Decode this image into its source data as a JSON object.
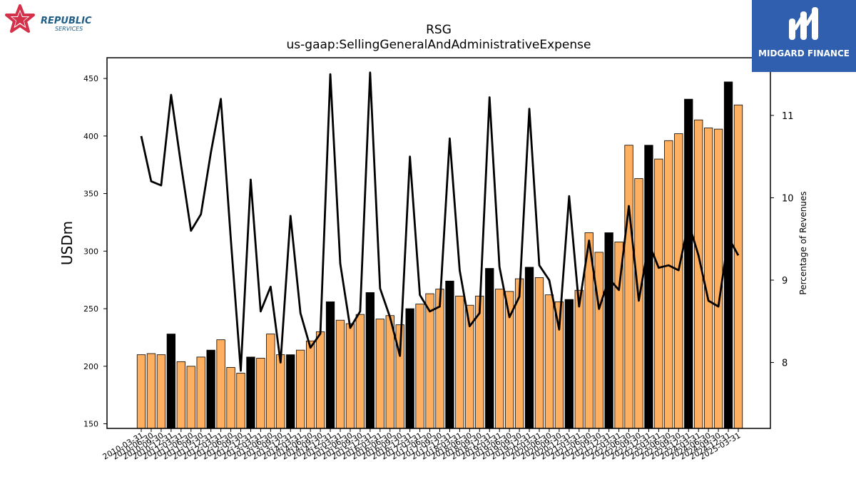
{
  "chart_data": {
    "type": "bar+line",
    "title": "RSG",
    "subtitle": "us-gaap:SellingGeneralAndAdministrativeExpense",
    "ylabel": "USDm",
    "y2label": "Percentage of Revenues",
    "ylim": [
      146,
      468
    ],
    "y2lim": [
      7.2,
      11.7
    ],
    "yticks": [
      150,
      200,
      250,
      300,
      350,
      400,
      450
    ],
    "y2ticks": [
      8,
      9,
      10,
      11
    ],
    "colors": {
      "bar": "#FFAF60",
      "bar_highlight": "#000000",
      "line": "#000000"
    },
    "categories": [
      "2010-03-31",
      "2010-06-30",
      "2010-09-30",
      "2010-12-31",
      "2011-03-31",
      "2011-06-30",
      "2011-09-30",
      "2011-12-31",
      "2012-03-31",
      "2012-06-30",
      "2012-09-30",
      "2012-12-31",
      "2013-03-31",
      "2013-06-30",
      "2013-09-30",
      "2013-12-31",
      "2014-03-31",
      "2014-06-30",
      "2014-09-30",
      "2014-12-31",
      "2015-03-31",
      "2015-06-30",
      "2015-09-30",
      "2015-12-31",
      "2016-03-31",
      "2016-06-30",
      "2016-09-30",
      "2016-12-31",
      "2017-03-31",
      "2017-06-30",
      "2017-09-30",
      "2017-12-31",
      "2018-03-31",
      "2018-06-30",
      "2018-09-30",
      "2018-12-31",
      "2019-03-31",
      "2019-06-30",
      "2019-09-30",
      "2019-12-31",
      "2020-03-31",
      "2020-06-30",
      "2020-09-30",
      "2020-12-31",
      "2021-03-31",
      "2021-06-30",
      "2021-09-30",
      "2021-12-31",
      "2022-03-31",
      "2022-06-30",
      "2022-09-30",
      "2022-12-31",
      "2023-03-31",
      "2023-06-30",
      "2023-09-30",
      "2023-12-31",
      "2024-03-31",
      "2024-06-30",
      "2024-09-30",
      "2024-12-31",
      "2025-03-31"
    ],
    "tick_labels": [
      "2010-03-31",
      "2010-06-30",
      "2010-09-30",
      "2010-12-31",
      "2011-03-31",
      "2011-06-30",
      "2011-09-30",
      "2011-12-31",
      "2012-03-31",
      "2012-06-30",
      "2012-09-30",
      "2012-12-31",
      "2013-03-31",
      "2013-06-30",
      "2013-09-30",
      "2013-12-31",
      "2014-03-31",
      "2014-06-30",
      "2014-09-30",
      "2014-12-31",
      "2015-03-31",
      "2015-06-30",
      "2015-09-30",
      "2015-12-31",
      "2016-03-31",
      "2016-06-30",
      "2016-09-30",
      "2016-12-31",
      "2017-03-31",
      "2017-06-30",
      "2017-09-30",
      "2017-12-31",
      "2018-03-31",
      "2018-06-30",
      "2018-09-30",
      "2018-12-31",
      "2019-03-31",
      "2019-06-30",
      "2019-09-30",
      "2019-12-31",
      "2020-03-31",
      "2020-06-30",
      "2020-09-30",
      "2020-12-31",
      "2021-03-31",
      "2021-06-30",
      "2021-09-30",
      "2021-12-31",
      "2022-03-31",
      "2022-06-30",
      "2022-09-30",
      "2022-12-31",
      "2023-03-31",
      "2023-06-30",
      "2023-09-30",
      "2023-12-31",
      "2024-03-31",
      "2024-06-30",
      "2024-09-30",
      "2024-12-31",
      "2025-03-31"
    ],
    "bar_values": [
      210,
      211,
      210,
      228,
      204,
      200,
      208,
      214,
      223,
      199,
      194,
      208,
      207,
      228,
      210,
      210,
      214,
      222,
      230,
      256,
      240,
      237,
      245,
      264,
      241,
      244,
      236,
      250,
      254,
      263,
      267,
      274,
      261,
      253,
      261,
      285,
      267,
      265,
      276,
      286,
      277,
      262,
      256,
      258,
      266,
      316,
      299,
      316,
      308,
      392,
      363,
      392,
      380,
      396,
      402,
      432,
      414,
      407,
      406,
      447,
      427
    ],
    "highlight_categories": [
      "2010-12-31",
      "2011-12-31",
      "2012-12-31",
      "2013-12-31",
      "2014-12-31",
      "2015-12-31",
      "2016-12-31",
      "2017-12-31",
      "2018-12-31",
      "2019-12-31",
      "2020-12-31",
      "2021-12-31",
      "2022-12-31",
      "2023-12-31",
      "2024-12-31"
    ],
    "pct_values": [
      10.75,
      10.2,
      10.15,
      11.25,
      10.4,
      9.6,
      9.8,
      10.55,
      11.2,
      9.5,
      7.9,
      10.22,
      8.62,
      8.92,
      8.0,
      9.78,
      8.6,
      8.18,
      8.35,
      11.5,
      9.2,
      8.42,
      8.62,
      11.52,
      8.9,
      8.55,
      8.08,
      10.5,
      8.82,
      8.62,
      8.68,
      10.72,
      9.12,
      8.44,
      8.6,
      11.22,
      9.16,
      8.55,
      8.8,
      11.08,
      9.18,
      9.0,
      8.4,
      10.02,
      8.68,
      9.48,
      8.65,
      9.02,
      8.88,
      9.9,
      8.75,
      9.45,
      9.15,
      9.18,
      9.12,
      9.7,
      9.3,
      8.75,
      8.68,
      9.52,
      9.3
    ]
  },
  "logos": {
    "republic": {
      "name": "REPUBLIC",
      "sub": "SERVICES",
      "icon": "star-logo-icon",
      "color": "#d5304a",
      "text_color": "#1f5d87"
    },
    "midgard": {
      "name": "MIDGARD FINANCE",
      "icon": "midgard-logo-icon",
      "bg": "#2f5fae"
    }
  }
}
